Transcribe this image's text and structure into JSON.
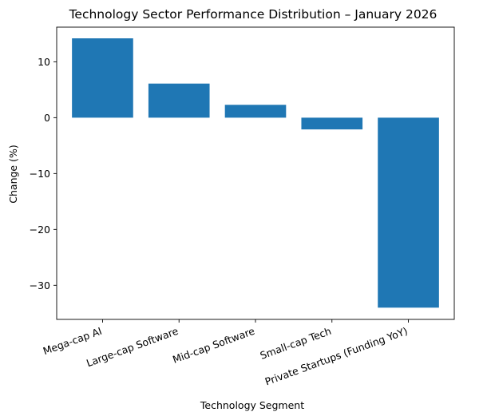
{
  "chart_data": {
    "type": "bar",
    "title": "Technology Sector Performance Distribution – January 2026",
    "xlabel": "Technology Segment",
    "ylabel": "Change (%)",
    "categories": [
      "Mega-cap AI",
      "Large-cap Software",
      "Mid-cap Software",
      "Small-cap Tech",
      "Private Startups (Funding YoY)"
    ],
    "values": [
      14.2,
      6.1,
      2.3,
      -2.1,
      -34.0
    ],
    "ylim": [
      -36.1,
      16.2
    ],
    "yticks": [
      10,
      0,
      -10,
      -20,
      -30
    ],
    "ytick_labels": [
      "10",
      "0",
      "−10",
      "−20",
      "−30"
    ],
    "bar_color": "#1f77b4",
    "grid": false,
    "legend": "none"
  }
}
